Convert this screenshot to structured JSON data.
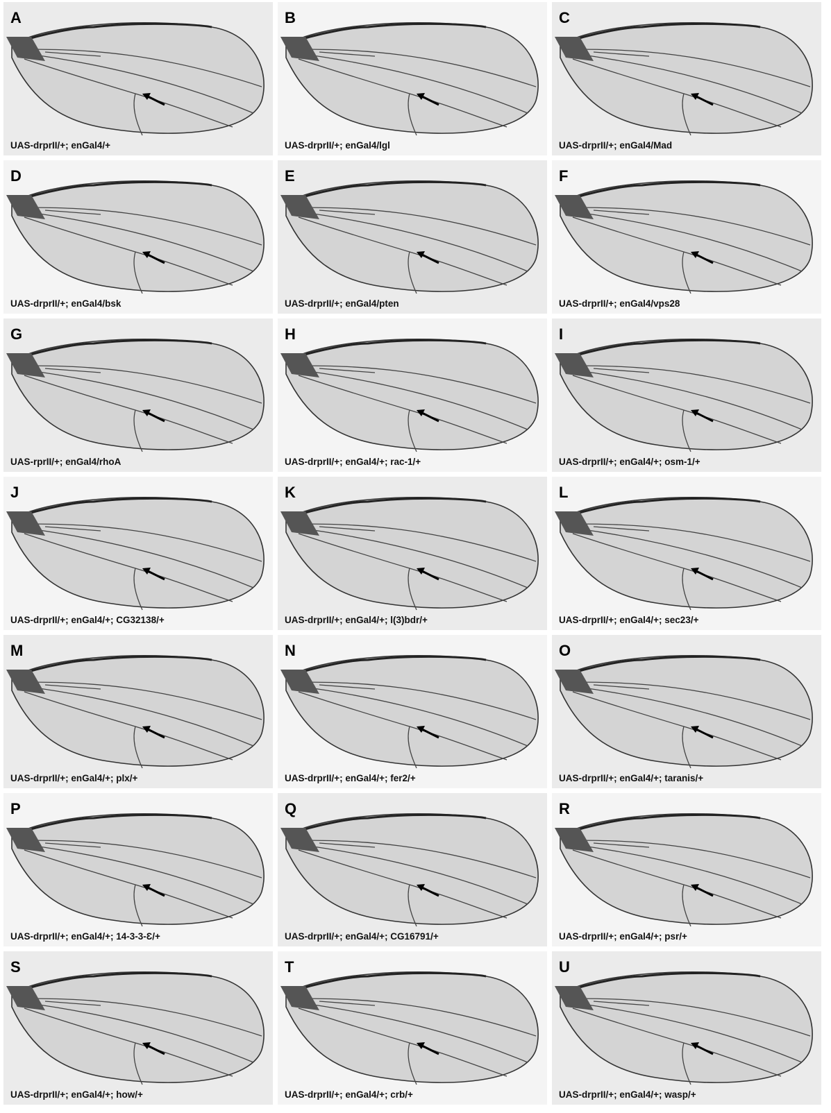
{
  "panels": [
    {
      "letter": "A",
      "label": "UAS-drprII/+; enGal4/+"
    },
    {
      "letter": "B",
      "label": "UAS-drprII/+; enGal4/lgl"
    },
    {
      "letter": "C",
      "label": "UAS-drprII/+; enGal4/Mad"
    },
    {
      "letter": "D",
      "label": "UAS-drprII/+; enGal4/bsk"
    },
    {
      "letter": "E",
      "label": "UAS-drprII/+; enGal4/pten"
    },
    {
      "letter": "F",
      "label": "UAS-drprII/+; enGal4/vps28"
    },
    {
      "letter": "G",
      "label": "UAS-rprII/+; enGal4/rhoA"
    },
    {
      "letter": "H",
      "label": "UAS-drprII/+; enGal4/+; rac-1/+"
    },
    {
      "letter": "I",
      "label": "UAS-drprII/+; enGal4/+; osm-1/+"
    },
    {
      "letter": "J",
      "label": "UAS-drprII/+; enGal4/+; CG32138/+"
    },
    {
      "letter": "K",
      "label": "UAS-drprII/+; enGal4/+; l(3)bdr/+"
    },
    {
      "letter": "L",
      "label": "UAS-drprII/+; enGal4/+; sec23/+"
    },
    {
      "letter": "M",
      "label": "UAS-drprII/+; enGal4/+; plx/+"
    },
    {
      "letter": "N",
      "label": "UAS-drprII/+; enGal4/+; fer2/+"
    },
    {
      "letter": "O",
      "label": "UAS-drprII/+; enGal4/+; taranis/+"
    },
    {
      "letter": "P",
      "label": "UAS-drprII/+; enGal4/+; 14-3-3-Ɛ/+"
    },
    {
      "letter": "Q",
      "label": "UAS-drprII/+; enGal4/+; CG16791/+"
    },
    {
      "letter": "R",
      "label": "UAS-drprII/+; enGal4/+; psr/+"
    },
    {
      "letter": "S",
      "label": "UAS-drprII/+; enGal4/+; how/+"
    },
    {
      "letter": "T",
      "label": "UAS-drprII/+; enGal4/+; crb/+"
    },
    {
      "letter": "U",
      "label": "UAS-drprII/+; enGal4/+; wasp/+"
    }
  ]
}
